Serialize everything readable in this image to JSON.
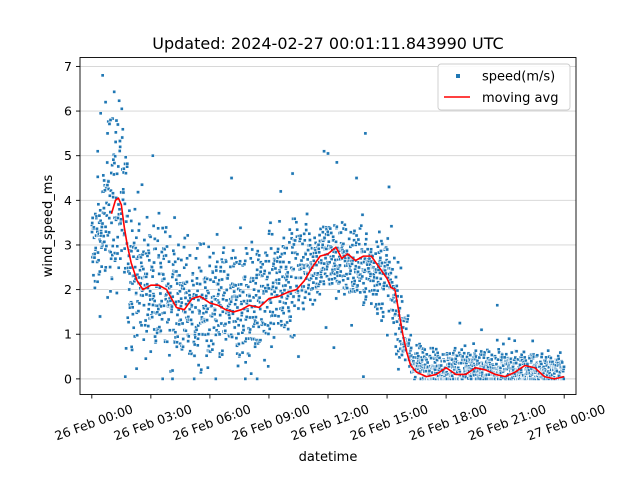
{
  "chart_data": {
    "type": "scatter",
    "title": "Updated: 2024-02-27 00:01:11.843990 UTC",
    "xlabel": "datetime",
    "ylabel": "wind_speed_ms",
    "x_unit": "hours since 26 Feb 00:00",
    "xlim": [
      -0.6,
      24.6
    ],
    "ylim": [
      -0.35,
      7.2
    ],
    "xticks": [
      {
        "value": 0,
        "label": "26 Feb 00:00"
      },
      {
        "value": 3,
        "label": "26 Feb 03:00"
      },
      {
        "value": 6,
        "label": "26 Feb 06:00"
      },
      {
        "value": 9,
        "label": "26 Feb 09:00"
      },
      {
        "value": 12,
        "label": "26 Feb 12:00"
      },
      {
        "value": 15,
        "label": "26 Feb 15:00"
      },
      {
        "value": 18,
        "label": "26 Feb 18:00"
      },
      {
        "value": 21,
        "label": "26 Feb 21:00"
      },
      {
        "value": 24,
        "label": "27 Feb 00:00"
      }
    ],
    "yticks": [
      0,
      1,
      2,
      3,
      4,
      5,
      6,
      7
    ],
    "grid": "horizontal",
    "legend_position": "top-right",
    "series": [
      {
        "name": "speed(m/s)",
        "kind": "scatter",
        "color": "#1f77b4",
        "envelope": [
          [
            0.0,
            2.9,
            0.55
          ],
          [
            0.5,
            3.2,
            0.7
          ],
          [
            1.0,
            4.0,
            1.0
          ],
          [
            1.3,
            4.2,
            1.2
          ],
          [
            1.6,
            3.6,
            1.1
          ],
          [
            2.0,
            2.6,
            0.9
          ],
          [
            2.5,
            2.1,
            0.75
          ],
          [
            3.0,
            2.1,
            0.7
          ],
          [
            4.0,
            1.9,
            0.7
          ],
          [
            5.0,
            1.6,
            0.7
          ],
          [
            6.0,
            1.5,
            0.7
          ],
          [
            7.0,
            1.6,
            0.7
          ],
          [
            8.0,
            1.7,
            0.7
          ],
          [
            9.0,
            1.9,
            0.7
          ],
          [
            10.0,
            2.3,
            0.6
          ],
          [
            11.0,
            2.6,
            0.5
          ],
          [
            12.0,
            2.75,
            0.45
          ],
          [
            13.0,
            2.6,
            0.45
          ],
          [
            14.0,
            2.5,
            0.45
          ],
          [
            15.0,
            2.3,
            0.5
          ],
          [
            15.7,
            1.3,
            0.5
          ],
          [
            16.3,
            0.35,
            0.25
          ],
          [
            17.5,
            0.25,
            0.2
          ],
          [
            19.0,
            0.25,
            0.25
          ],
          [
            20.0,
            0.2,
            0.2
          ],
          [
            21.0,
            0.25,
            0.25
          ],
          [
            22.0,
            0.2,
            0.2
          ],
          [
            24.0,
            0.2,
            0.2
          ]
        ],
        "outliers": [
          [
            0.55,
            6.8
          ],
          [
            0.7,
            6.2
          ],
          [
            0.45,
            5.95
          ],
          [
            0.95,
            5.8
          ],
          [
            0.8,
            5.5
          ],
          [
            0.3,
            5.1
          ],
          [
            3.1,
            5.0
          ],
          [
            2.55,
            4.35
          ],
          [
            7.1,
            4.5
          ],
          [
            10.2,
            4.6
          ],
          [
            11.8,
            5.1
          ],
          [
            12.0,
            5.05
          ],
          [
            12.45,
            4.85
          ],
          [
            13.9,
            5.5
          ],
          [
            15.1,
            4.3
          ],
          [
            13.45,
            4.5
          ],
          [
            9.6,
            4.2
          ],
          [
            18.7,
            1.25
          ],
          [
            20.6,
            1.65
          ],
          [
            19.8,
            1.1
          ],
          [
            21.2,
            0.9
          ],
          [
            22.4,
            0.85
          ],
          [
            3.6,
            0.0
          ],
          [
            4.1,
            0.0
          ],
          [
            5.2,
            0.0
          ],
          [
            6.3,
            0.0
          ],
          [
            7.8,
            0.0
          ],
          [
            8.4,
            0.0
          ],
          [
            13.8,
            0.05
          ],
          [
            1.7,
            0.05
          ],
          [
            12.3,
            0.7
          ],
          [
            11.9,
            1.15
          ],
          [
            13.2,
            1.2
          ],
          [
            10.5,
            0.5
          ]
        ]
      },
      {
        "name": "moving avg",
        "kind": "line",
        "color": "#ff0000",
        "points": [
          [
            1.0,
            3.7
          ],
          [
            1.2,
            4.0
          ],
          [
            1.35,
            4.05
          ],
          [
            1.5,
            3.9
          ],
          [
            1.65,
            3.4
          ],
          [
            1.8,
            3.0
          ],
          [
            2.0,
            2.6
          ],
          [
            2.3,
            2.2
          ],
          [
            2.6,
            2.0
          ],
          [
            3.0,
            2.1
          ],
          [
            3.4,
            2.1
          ],
          [
            3.8,
            2.0
          ],
          [
            4.3,
            1.6
          ],
          [
            4.7,
            1.55
          ],
          [
            5.1,
            1.8
          ],
          [
            5.5,
            1.85
          ],
          [
            6.0,
            1.7
          ],
          [
            6.4,
            1.65
          ],
          [
            6.8,
            1.55
          ],
          [
            7.2,
            1.5
          ],
          [
            7.6,
            1.55
          ],
          [
            8.0,
            1.65
          ],
          [
            8.5,
            1.6
          ],
          [
            9.0,
            1.8
          ],
          [
            9.5,
            1.85
          ],
          [
            10.0,
            1.95
          ],
          [
            10.4,
            2.0
          ],
          [
            10.8,
            2.2
          ],
          [
            11.2,
            2.5
          ],
          [
            11.6,
            2.75
          ],
          [
            12.0,
            2.8
          ],
          [
            12.4,
            2.95
          ],
          [
            12.7,
            2.7
          ],
          [
            13.0,
            2.8
          ],
          [
            13.4,
            2.65
          ],
          [
            13.8,
            2.75
          ],
          [
            14.2,
            2.75
          ],
          [
            14.6,
            2.5
          ],
          [
            15.0,
            2.25
          ],
          [
            15.2,
            2.05
          ],
          [
            15.4,
            2.0
          ],
          [
            15.6,
            1.5
          ],
          [
            15.8,
            1.0
          ],
          [
            16.0,
            0.6
          ],
          [
            16.2,
            0.3
          ],
          [
            16.5,
            0.15
          ],
          [
            17.0,
            0.05
          ],
          [
            17.5,
            0.1
          ],
          [
            18.0,
            0.25
          ],
          [
            18.5,
            0.1
          ],
          [
            19.0,
            0.1
          ],
          [
            19.5,
            0.25
          ],
          [
            20.0,
            0.2
          ],
          [
            20.5,
            0.1
          ],
          [
            21.0,
            0.05
          ],
          [
            21.5,
            0.15
          ],
          [
            22.0,
            0.3
          ],
          [
            22.5,
            0.25
          ],
          [
            23.0,
            0.05
          ],
          [
            23.5,
            0.0
          ],
          [
            24.0,
            0.05
          ]
        ]
      }
    ]
  }
}
